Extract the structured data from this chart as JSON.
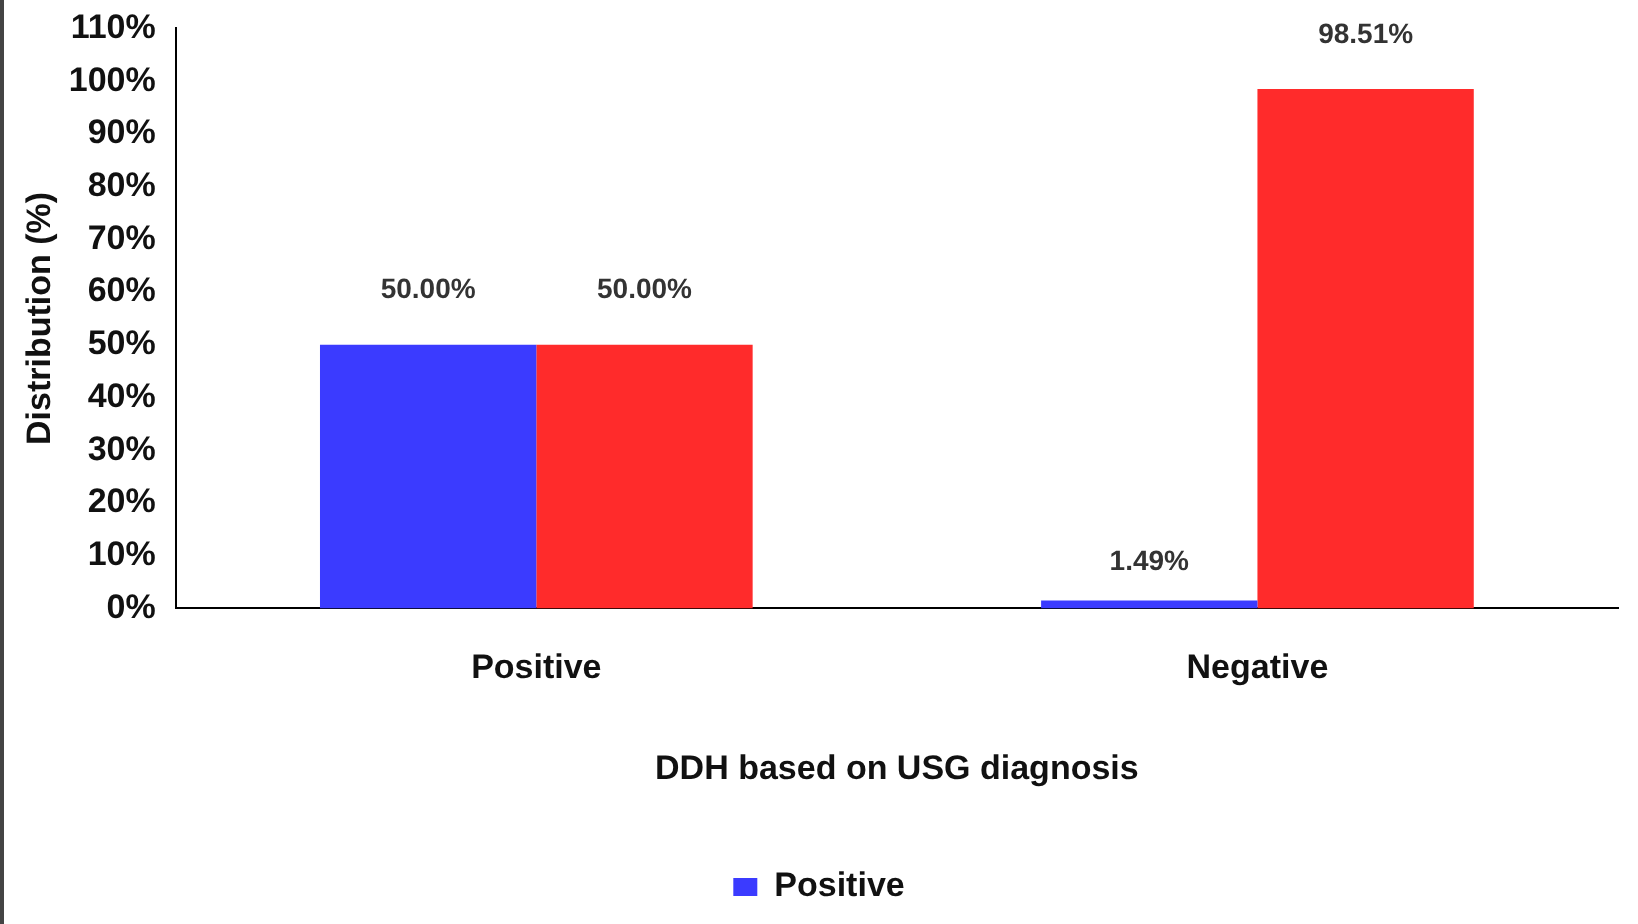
{
  "chart_data": {
    "type": "bar",
    "xlabel": "DDH based on USG diagnosis",
    "ylabel": "Distribution (%)",
    "categories": [
      "Positive",
      "Negative"
    ],
    "series": [
      {
        "name": "Positive",
        "color": "#3b3bff",
        "values": [
          50.0,
          1.49
        ],
        "value_labels": [
          "50.00%",
          "1.49%"
        ]
      },
      {
        "color": "#ff2b2b",
        "values": [
          50.0,
          98.51
        ],
        "value_labels": [
          "50.00%",
          "98.51%"
        ]
      }
    ],
    "ylim": [
      0,
      110
    ],
    "yticks": [
      {
        "value": 0,
        "label": "0%"
      },
      {
        "value": 10,
        "label": "10%"
      },
      {
        "value": 20,
        "label": "20%"
      },
      {
        "value": 30,
        "label": "30%"
      },
      {
        "value": 40,
        "label": "40%"
      },
      {
        "value": 50,
        "label": "50%"
      },
      {
        "value": 60,
        "label": "60%"
      },
      {
        "value": 70,
        "label": "70%"
      },
      {
        "value": 80,
        "label": "80%"
      },
      {
        "value": 90,
        "label": "90%"
      },
      {
        "value": 100,
        "label": "100%"
      },
      {
        "value": 110,
        "label": "110%"
      }
    ],
    "grid": false,
    "legend": "bottom"
  }
}
